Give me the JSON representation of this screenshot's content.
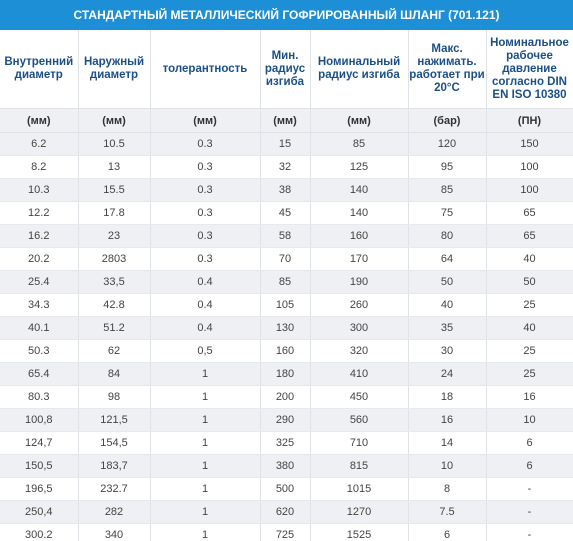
{
  "title": "СТАНДАРТНЫЙ МЕТАЛЛИЧЕСКИЙ ГОФРИРОВАННЫЙ ШЛАНГ (701.121)",
  "table": {
    "headers": [
      "Внутренний диаметр",
      "Наружный диаметр",
      "толерантность",
      "Мин. радиус изгиба",
      "Номинальный радиус изгиба",
      "Макс. нажимать. работает при 20°C",
      "Номинальное рабочее давление согласно DIN EN ISO 10380"
    ],
    "units": [
      "(мм)",
      "(мм)",
      "(мм)",
      "(мм)",
      "(мм)",
      "(бар)",
      "(ПН)"
    ],
    "rows": [
      [
        "6.2",
        "10.5",
        "0.3",
        "15",
        "85",
        "120",
        "150"
      ],
      [
        "8.2",
        "13",
        "0.3",
        "32",
        "125",
        "95",
        "100"
      ],
      [
        "10.3",
        "15.5",
        "0.3",
        "38",
        "140",
        "85",
        "100"
      ],
      [
        "12.2",
        "17.8",
        "0.3",
        "45",
        "140",
        "75",
        "65"
      ],
      [
        "16.2",
        "23",
        "0.3",
        "58",
        "160",
        "80",
        "65"
      ],
      [
        "20.2",
        "2803",
        "0.3",
        "70",
        "170",
        "64",
        "40"
      ],
      [
        "25.4",
        "33,5",
        "0.4",
        "85",
        "190",
        "50",
        "50"
      ],
      [
        "34.3",
        "42.8",
        "0.4",
        "105",
        "260",
        "40",
        "25"
      ],
      [
        "40.1",
        "51.2",
        "0.4",
        "130",
        "300",
        "35",
        "40"
      ],
      [
        "50.3",
        "62",
        "0,5",
        "160",
        "320",
        "30",
        "25"
      ],
      [
        "65.4",
        "84",
        "1",
        "180",
        "410",
        "24",
        "25"
      ],
      [
        "80.3",
        "98",
        "1",
        "200",
        "450",
        "18",
        "16"
      ],
      [
        "100,8",
        "121,5",
        "1",
        "290",
        "560",
        "16",
        "10"
      ],
      [
        "124,7",
        "154,5",
        "1",
        "325",
        "710",
        "14",
        "6"
      ],
      [
        "150,5",
        "183,7",
        "1",
        "380",
        "815",
        "10",
        "6"
      ],
      [
        "196,5",
        "232.7",
        "1",
        "500",
        "1015",
        "8",
        "-"
      ],
      [
        "250,4",
        "282",
        "1",
        "620",
        "1270",
        "7.5",
        "-"
      ],
      [
        "300.2",
        "340",
        "1",
        "725",
        "1525",
        "6",
        "-"
      ]
    ]
  }
}
